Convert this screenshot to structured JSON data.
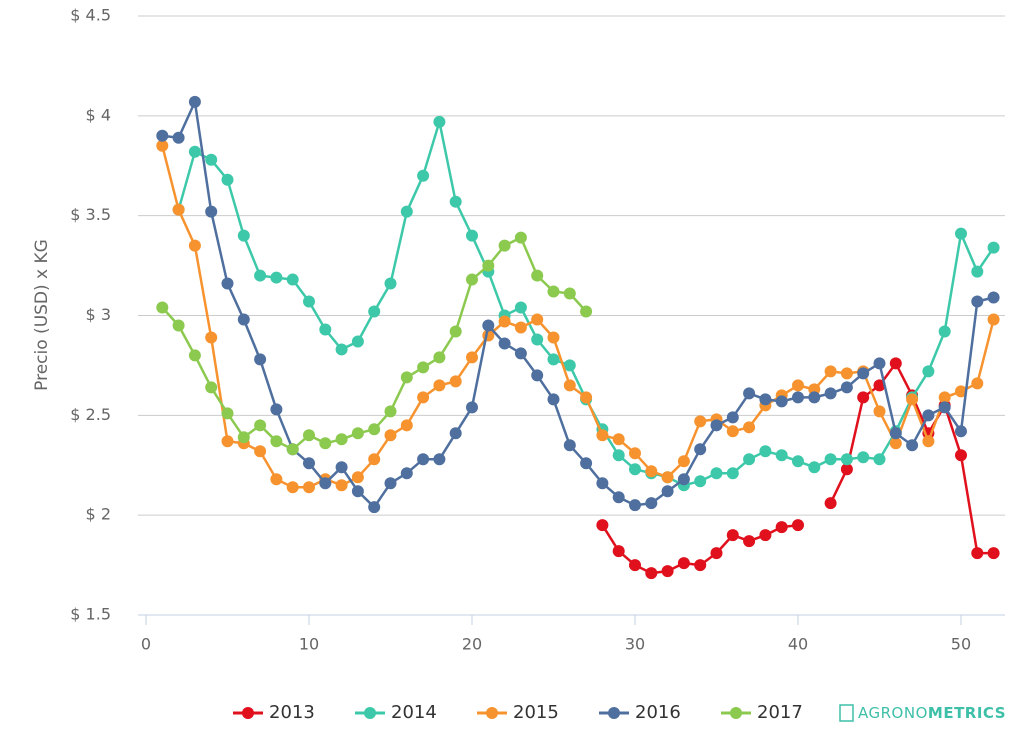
{
  "chart_data": {
    "type": "line",
    "y_label": "Precio (USD) x KG",
    "x": [
      1,
      2,
      3,
      4,
      5,
      6,
      7,
      8,
      9,
      10,
      11,
      12,
      13,
      14,
      15,
      16,
      17,
      18,
      19,
      20,
      21,
      22,
      23,
      24,
      25,
      26,
      27,
      28,
      29,
      30,
      31,
      32,
      33,
      34,
      35,
      36,
      37,
      38,
      39,
      40,
      41,
      42,
      43,
      44,
      45,
      46,
      47,
      48,
      49,
      50,
      51,
      52
    ],
    "xlim": [
      0,
      52.7
    ],
    "xticks": [
      0,
      10,
      20,
      30,
      40,
      50
    ],
    "ylim": [
      1.5,
      4.5
    ],
    "yticks": [
      {
        "value": 1.5,
        "label": "$ 1.5"
      },
      {
        "value": 2,
        "label": "$ 2"
      },
      {
        "value": 2.5,
        "label": "$ 2.5"
      },
      {
        "value": 3,
        "label": "$ 3"
      },
      {
        "value": 3.5,
        "label": "$ 3.5"
      },
      {
        "value": 4,
        "label": "$ 4"
      },
      {
        "value": 4.5,
        "label": "$ 4.5"
      }
    ],
    "grid": true,
    "legend": "bottom",
    "watermark": [
      "AGRONO",
      "METRICS"
    ],
    "series": [
      {
        "name": "2013",
        "color": "#e0101c",
        "values": [
          null,
          null,
          null,
          null,
          null,
          null,
          null,
          null,
          null,
          null,
          null,
          null,
          null,
          null,
          null,
          null,
          null,
          null,
          null,
          null,
          null,
          null,
          null,
          null,
          null,
          null,
          null,
          1.95,
          1.82,
          1.75,
          1.71,
          1.72,
          1.76,
          1.75,
          1.81,
          1.9,
          1.87,
          1.9,
          1.94,
          1.95,
          null,
          2.06,
          2.23,
          2.59,
          2.65,
          2.76,
          2.6,
          2.41,
          2.55,
          2.3,
          1.81,
          1.81
        ]
      },
      {
        "name": "2014",
        "color": "#3dc9a9",
        "values": [
          null,
          3.53,
          3.82,
          3.78,
          3.68,
          3.4,
          3.2,
          3.19,
          3.18,
          3.07,
          2.93,
          2.83,
          2.87,
          3.02,
          3.16,
          3.52,
          3.7,
          3.97,
          3.57,
          3.4,
          3.22,
          3.0,
          3.04,
          2.88,
          2.78,
          2.75,
          2.58,
          2.43,
          2.3,
          2.23,
          2.21,
          2.19,
          2.15,
          2.17,
          2.21,
          2.21,
          2.28,
          2.32,
          2.3,
          2.27,
          2.24,
          2.28,
          2.28,
          2.29,
          2.28,
          2.42,
          2.59,
          2.72,
          2.92,
          3.41,
          3.22,
          3.34
        ]
      },
      {
        "name": "2015",
        "color": "#f7932f",
        "values": [
          3.85,
          3.53,
          3.35,
          2.89,
          2.37,
          2.36,
          2.32,
          2.18,
          2.14,
          2.14,
          2.18,
          2.15,
          2.19,
          2.28,
          2.4,
          2.45,
          2.59,
          2.65,
          2.67,
          2.79,
          2.9,
          2.97,
          2.94,
          2.98,
          2.89,
          2.65,
          2.59,
          2.4,
          2.38,
          2.31,
          2.22,
          2.19,
          2.27,
          2.47,
          2.48,
          2.42,
          2.44,
          2.55,
          2.6,
          2.65,
          2.63,
          2.72,
          2.71,
          2.72,
          2.52,
          2.36,
          2.58,
          2.37,
          2.59,
          2.62,
          2.66,
          2.98
        ]
      },
      {
        "name": "2016",
        "color": "#4f6f9f",
        "values": [
          3.9,
          3.89,
          4.07,
          3.52,
          3.16,
          2.98,
          2.78,
          2.53,
          2.33,
          2.26,
          2.16,
          2.24,
          2.12,
          2.04,
          2.16,
          2.21,
          2.28,
          2.28,
          2.41,
          2.54,
          2.95,
          2.86,
          2.81,
          2.7,
          2.58,
          2.35,
          2.26,
          2.16,
          2.09,
          2.05,
          2.06,
          2.12,
          2.18,
          2.33,
          2.45,
          2.49,
          2.61,
          2.58,
          2.57,
          2.59,
          2.59,
          2.61,
          2.64,
          2.71,
          2.76,
          2.41,
          2.35,
          2.5,
          2.54,
          2.42,
          3.07,
          3.09
        ]
      },
      {
        "name": "2017",
        "color": "#8cc94f",
        "values": [
          3.04,
          2.95,
          2.8,
          2.64,
          2.51,
          2.39,
          2.45,
          2.37,
          2.33,
          2.4,
          2.36,
          2.38,
          2.41,
          2.43,
          2.52,
          2.69,
          2.74,
          2.79,
          2.92,
          3.18,
          3.25,
          3.35,
          3.39,
          3.2,
          3.12,
          3.11,
          3.02,
          null,
          null,
          null,
          null,
          null,
          null,
          null,
          null,
          null,
          null,
          null,
          null,
          null,
          null,
          null,
          null,
          null,
          null,
          null,
          null,
          null,
          null,
          null,
          null,
          null
        ]
      }
    ]
  }
}
